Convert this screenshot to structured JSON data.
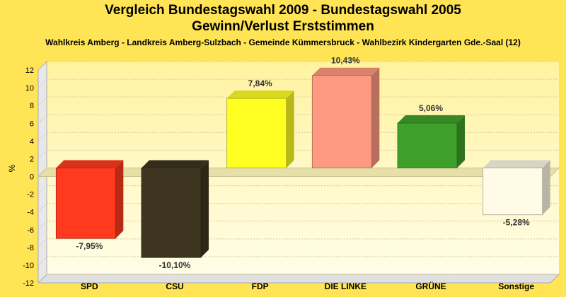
{
  "chart_data": {
    "type": "bar",
    "title": "Vergleich Bundestagswahl 2009 - Bundestagswahl 2005",
    "subtitle": "Gewinn/Verlust Erststimmen",
    "caption": "Wahlkreis Amberg - Landkreis Amberg-Sulzbach - Gemeinde Kümmersbruck - Wahlbezirk Kindergarten Gde.-Saal (12)",
    "ylabel": "%",
    "xlabel": "",
    "ylim": [
      -12,
      12
    ],
    "yticks": [
      12,
      10,
      8,
      6,
      4,
      2,
      0,
      -2,
      -4,
      -6,
      -8,
      -10,
      -12
    ],
    "categories": [
      "SPD",
      "CSU",
      "FDP",
      "DIE LINKE",
      "GRÜNE",
      "Sonstige"
    ],
    "values": [
      -7.95,
      -10.1,
      7.84,
      10.43,
      5.06,
      -5.28
    ],
    "value_labels": [
      "-7,95%",
      "-10,10%",
      "7,84%",
      "10,43%",
      "5,06%",
      "-5,28%"
    ],
    "colors": [
      "#ff3a1e",
      "#3e3520",
      "#ffff22",
      "#ff9a82",
      "#3ea028",
      "#fffbe6"
    ],
    "grid": true,
    "legend": "none"
  }
}
